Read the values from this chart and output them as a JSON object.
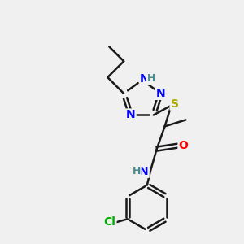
{
  "background_color": "#f0f0f0",
  "bond_color": "#1a1a1a",
  "bond_width": 1.8,
  "atom_colors": {
    "N": "#0000ff",
    "O": "#ff0000",
    "S": "#aaaa00",
    "Cl": "#00aa00",
    "H": "#4a8a8a",
    "C": "#1a1a1a"
  },
  "font_size_atom": 10,
  "font_size_H": 9,
  "font_size_Cl": 10
}
